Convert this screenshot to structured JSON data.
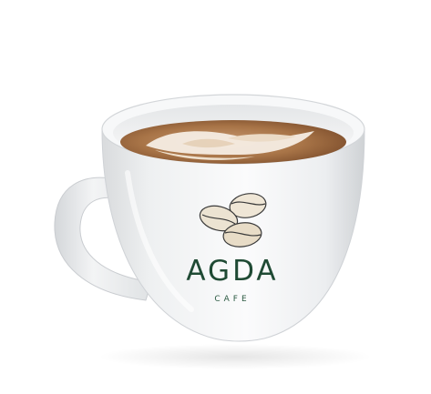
{
  "logo": {
    "brand_name": "AGDA",
    "brand_subtitle": "CAFE",
    "icon": "coffee-beans-icon"
  },
  "colors": {
    "background": "#ffffff",
    "cup": "#f1f2f3",
    "coffee": "#9a6a44",
    "foam": "#f6ede3",
    "brand_green": "#1f4a34"
  }
}
